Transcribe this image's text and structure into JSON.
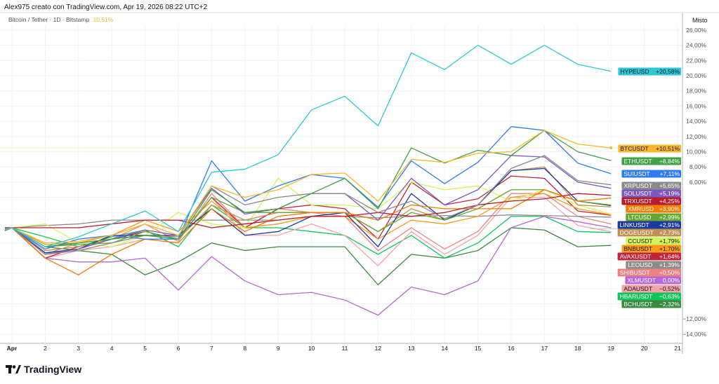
{
  "header": "Alex975 creato con TradingView.com, Apr 19, 2026 08:22 UTC+2",
  "legend": {
    "symbol": "Bitcoin / Tether · 1D · Bitstamp",
    "change": "10,51%"
  },
  "scale_mode": "Misto",
  "logo": "TradingView",
  "chart_data": {
    "type": "line",
    "title": "",
    "xlabel": "",
    "ylabel": "",
    "ylim": [
      -15,
      27
    ],
    "grid": true,
    "legend": "right-axis labels",
    "x_tick_labels": [
      "Apr",
      "2",
      "3",
      "4",
      "5",
      "6",
      "7",
      "8",
      "9",
      "10",
      "11",
      "12",
      "13",
      "14",
      "15",
      "16",
      "17",
      "18",
      "19",
      "20",
      "21"
    ],
    "y_tick_labels": [
      "26,00%",
      "24,00%",
      "22,00%",
      "20,00%",
      "18,00%",
      "16,00%",
      "14,00%",
      "12,00%",
      "10,00%",
      "8,00%",
      "6,00%",
      "−12,00%",
      "−14,00%"
    ],
    "x": [
      1,
      2,
      3,
      4,
      5,
      6,
      7,
      8,
      9,
      10,
      11,
      12,
      13,
      14,
      15,
      16,
      17,
      18,
      19
    ],
    "series": [
      {
        "name": "HYPEUSD",
        "label": "+20,58%",
        "color": "#2ec7d6",
        "values": [
          0,
          -2.5,
          -1.2,
          0.5,
          2.2,
          -0.5,
          7.3,
          7.7,
          9.6,
          15.5,
          17.3,
          13.4,
          23,
          20.8,
          24,
          21.5,
          24,
          21.5,
          20.58
        ]
      },
      {
        "name": "BTCUSDT",
        "label": "+10,51%",
        "color": "#f5b82e",
        "values": [
          0,
          -2,
          -1.8,
          -1,
          0.5,
          -1,
          5.5,
          4,
          5,
          7,
          7.2,
          3.5,
          9,
          8.6,
          9.8,
          10,
          12.8,
          11,
          10.51
        ]
      },
      {
        "name": "ETHUSDT",
        "label": "+8,84%",
        "color": "#43a047",
        "values": [
          0,
          -2.5,
          -2,
          -1.5,
          -1,
          -1.5,
          5,
          2,
          2.5,
          4.5,
          6.5,
          2.5,
          10.5,
          8.5,
          10.2,
          9.5,
          12.8,
          10,
          8.84
        ]
      },
      {
        "name": "SUIUSDT",
        "label": "+7,11%",
        "color": "#2f7cf6",
        "values": [
          0,
          -2.8,
          -1.5,
          -1,
          -1.5,
          -1.5,
          8.8,
          3.5,
          5.5,
          7,
          6.5,
          2.7,
          8.8,
          5.8,
          8.6,
          13.3,
          12.8,
          8.5,
          7.11
        ]
      },
      {
        "name": "XRPUSDT",
        "label": "+5,65%",
        "color": "#8a8a8a",
        "values": [
          0,
          -3.5,
          -3,
          -2,
          -1,
          -1.2,
          5.5,
          3,
          4,
          4.5,
          4.5,
          2,
          3.5,
          1.2,
          3,
          7.8,
          9.5,
          6.2,
          5.65
        ]
      },
      {
        "name": "SOLUSDT",
        "label": "+5,19%",
        "color": "#7e57c2",
        "values": [
          0,
          -3.5,
          -2.8,
          -1.5,
          -0.3,
          -1,
          5.2,
          1.8,
          2.5,
          4.5,
          4.5,
          1,
          6.5,
          3,
          5,
          9.5,
          9.3,
          6,
          5.19
        ]
      },
      {
        "name": "TRXUSDT",
        "label": "+4,25%",
        "color": "#b71c2c",
        "values": [
          0,
          0,
          0,
          0.5,
          1,
          1,
          0,
          0.5,
          1,
          1.5,
          1.5,
          2,
          1.5,
          2,
          3,
          3.5,
          3.8,
          4.5,
          4.25
        ]
      },
      {
        "name": "XMRUSD",
        "label": "+3,90%",
        "color": "#f57c00",
        "values": [
          0,
          -4,
          -6.2,
          -3.5,
          -1.5,
          -2,
          2.5,
          -0.5,
          1.5,
          2,
          2,
          1,
          3,
          2.5,
          2.5,
          2.5,
          5,
          3.5,
          3.9
        ]
      },
      {
        "name": "LTCUSD",
        "label": "+2,99%",
        "color": "#64a832",
        "values": [
          0,
          -2.5,
          -2.2,
          -2,
          -0.5,
          -1.5,
          4,
          2,
          2,
          2,
          2,
          -0.5,
          2,
          1,
          2.5,
          5,
          5,
          3.5,
          2.99
        ]
      },
      {
        "name": "LINKUSDT",
        "label": "+2,91%",
        "color": "#1c3a9e",
        "values": [
          0,
          -3.3,
          -2.8,
          -1,
          -1,
          -1,
          2.5,
          -1,
          -0.5,
          1.5,
          2,
          -2.5,
          4.5,
          1,
          3,
          7.5,
          7.8,
          3.5,
          2.91
        ]
      },
      {
        "name": "DOGEUSDT",
        "label": "+2,73%",
        "color": "#c19152",
        "values": [
          0,
          -3,
          -2.5,
          -1.5,
          -1,
          -1.5,
          3,
          1,
          2,
          2,
          2,
          -0.5,
          2.5,
          1,
          3,
          7.5,
          8,
          3,
          2.73
        ]
      },
      {
        "name": "CCUSDT",
        "label": "+1,79%",
        "color": "#d4f55a",
        "values": [
          0,
          0.5,
          -2,
          -2.5,
          -1,
          2,
          0.5,
          0,
          6.5,
          3,
          3,
          2.5,
          6,
          5,
          5.5,
          3.5,
          5,
          3,
          1.79
        ]
      },
      {
        "name": "BNBUSDT",
        "label": "+1,70%",
        "color": "#f99a1c",
        "values": [
          0,
          -2.2,
          -2,
          -1,
          1,
          -0.5,
          3.5,
          0,
          0.5,
          1.5,
          1.5,
          -1.5,
          1,
          0.5,
          1.5,
          4,
          4.5,
          2.5,
          1.7
        ]
      },
      {
        "name": "AVAXUSDT",
        "label": "+1,64%",
        "color": "#c2253b",
        "values": [
          0,
          -4,
          -2.5,
          -1.5,
          -0.5,
          -1.5,
          4,
          0,
          2.5,
          3,
          2.5,
          -1.5,
          6,
          3,
          3.8,
          6.8,
          6.5,
          2.2,
          1.64
        ]
      },
      {
        "name": "LEOUSD",
        "label": "+1,39%",
        "color": "#8c8c8c",
        "values": [
          0,
          0.3,
          0.5,
          1,
          1,
          1,
          1,
          1,
          1,
          1.5,
          1.5,
          1.3,
          1.5,
          1.6,
          1.5,
          1.7,
          1.6,
          1.5,
          1.39
        ]
      },
      {
        "name": "SHIBUSDT",
        "label": "+0,50%",
        "color": "#f08080",
        "values": [
          0,
          -3.5,
          -2,
          -1.5,
          0.5,
          -1.8,
          4.5,
          0,
          2.5,
          2,
          1.5,
          -3,
          0,
          -2.8,
          -0.5,
          4.5,
          4.5,
          1.5,
          0.5
        ]
      },
      {
        "name": "XLMUSDT",
        "label": "0,00%",
        "color": "#b469d6",
        "values": [
          0,
          -4,
          -4.5,
          -4.5,
          -4,
          -8.2,
          -3.8,
          -7,
          -8.8,
          -8.5,
          -9.5,
          -11.5,
          -7.8,
          -8.8,
          -7,
          0,
          1.5,
          0.8,
          0
        ]
      },
      {
        "name": "ADAUSDT",
        "label": "−0,52%",
        "color": "#f4a3a8",
        "values": [
          0,
          -4,
          -3,
          -2.5,
          -1.5,
          -1.5,
          4,
          -1,
          -1,
          0.5,
          -1,
          -5,
          -0.5,
          -3.5,
          -1,
          4,
          4,
          0.3,
          -0.52
        ]
      },
      {
        "name": "HBARUSDT",
        "label": "−0,63%",
        "color": "#10c45a",
        "values": [
          0,
          -1.2,
          -2.5,
          -1.2,
          -0.3,
          -2.5,
          3,
          0,
          0,
          -0.5,
          -1,
          -3.5,
          -1,
          -4,
          -2,
          1.5,
          1.5,
          -0.5,
          -0.63
        ]
      },
      {
        "name": "BCHUSDT",
        "label": "−2,32%",
        "color": "#3a8a3f",
        "values": [
          0,
          -2.5,
          -3,
          -3.5,
          -6.2,
          -4.5,
          -2,
          -3,
          -2.5,
          -2.5,
          -2.5,
          -7.5,
          -3.5,
          -4,
          -3,
          0,
          -0.3,
          -2.5,
          -2.32
        ]
      }
    ]
  }
}
